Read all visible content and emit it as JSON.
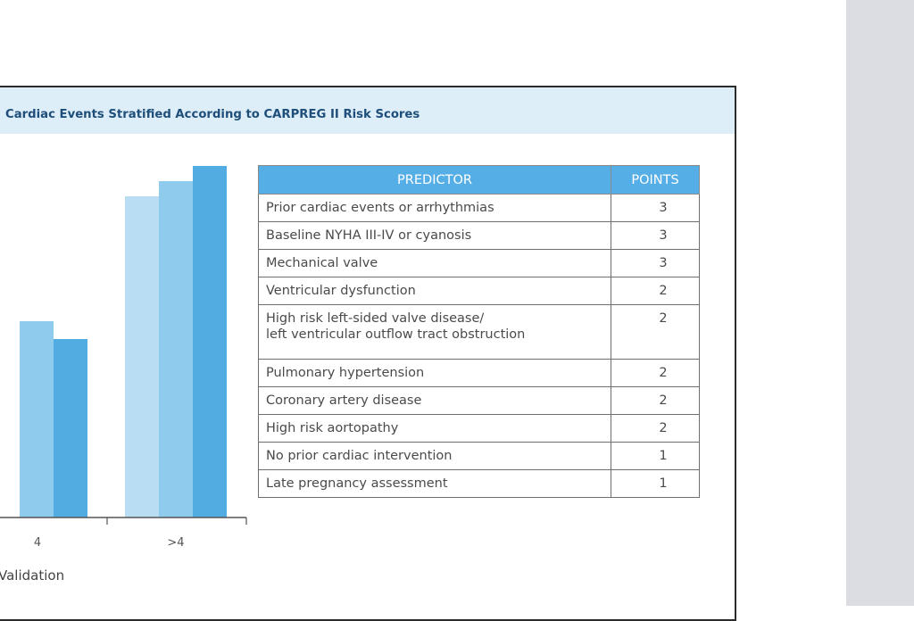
{
  "figure": {
    "title": "Cardiac Events Stratified According to CARPREG II Risk Scores",
    "x_caption": "Validation",
    "colors": {
      "light": "#b9def3",
      "mid": "#8ecbec",
      "dark": "#52ace2"
    }
  },
  "chart_data": {
    "type": "bar",
    "categories": [
      "4",
      ">4"
    ],
    "series": [
      {
        "values": [
          null,
          360
        ]
      },
      {
        "values": [
          220,
          377
        ]
      },
      {
        "values": [
          200,
          394
        ]
      }
    ],
    "xlabel": "Validation",
    "ylabel": ""
  },
  "table": {
    "headers": [
      "PREDICTOR",
      "POINTS"
    ],
    "rows": [
      {
        "predictor": "Prior cardiac events or arrhythmias",
        "points": "3"
      },
      {
        "predictor": "Baseline NYHA III-IV or cyanosis",
        "points": "3"
      },
      {
        "predictor": "Mechanical valve",
        "points": "3"
      },
      {
        "predictor": "Ventricular dysfunction",
        "points": "2"
      },
      {
        "predictor": "High risk left-sided valve disease/",
        "predictor2": "left ventricular outflow tract obstruction",
        "points": "2"
      },
      {
        "predictor": "Pulmonary hypertension",
        "points": "2"
      },
      {
        "predictor": "Coronary artery disease",
        "points": "2"
      },
      {
        "predictor": "High risk aortopathy",
        "points": "2"
      },
      {
        "predictor": "No prior cardiac intervention",
        "points": "1"
      },
      {
        "predictor": "Late pregnancy assessment",
        "points": "1"
      }
    ]
  }
}
